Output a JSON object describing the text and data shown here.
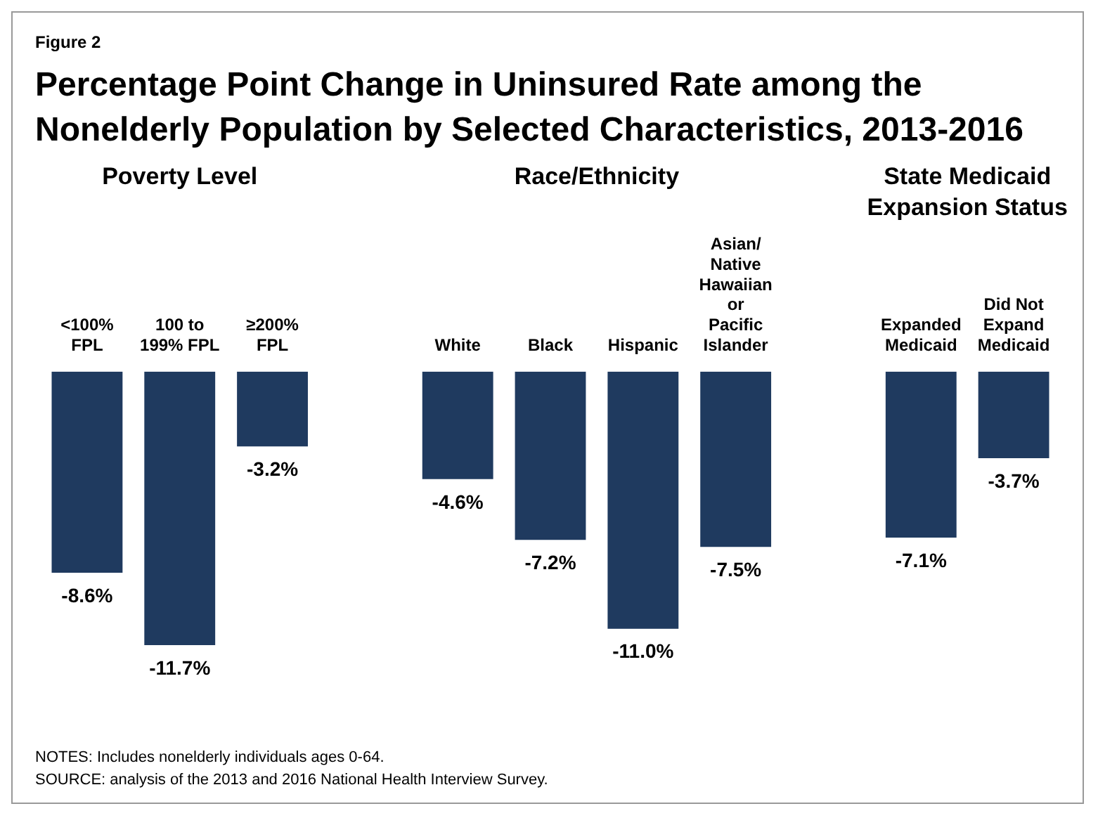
{
  "chart_data": {
    "type": "bar",
    "subtitle": "Figure 2",
    "title": "Percentage Point Change in Uninsured Rate among the Nonelderly Population by Selected Characteristics, 2013-2016",
    "categories": [
      "<100% FPL",
      "100 to 199% FPL",
      "≥200% FPL",
      null,
      "White",
      "Black",
      "Hispanic",
      "Asian/ Native Hawaiian or Pacific Islander",
      null,
      "Expanded Medicaid",
      "Did Not Expand Medicaid"
    ],
    "values": [
      -8.6,
      -11.7,
      -3.2,
      null,
      -4.6,
      -7.2,
      -11.0,
      -7.5,
      null,
      -7.1,
      -3.7
    ],
    "value_labels": [
      "-8.6%",
      "-11.7%",
      "-3.2%",
      null,
      "-4.6%",
      "-7.2%",
      "-11.0%",
      "-7.5%",
      null,
      "-7.1%",
      "-3.7%"
    ],
    "color": "#1f3a5f",
    "annotations": [
      "Poverty Level",
      "Race/Ethnicity",
      "State Medicaid Expansion Status",
      "NOTES: Includes nonelderly individuals ages 0-64.",
      "SOURCE: analysis of the 2013 and 2016 National Health Interview Survey."
    ]
  }
}
